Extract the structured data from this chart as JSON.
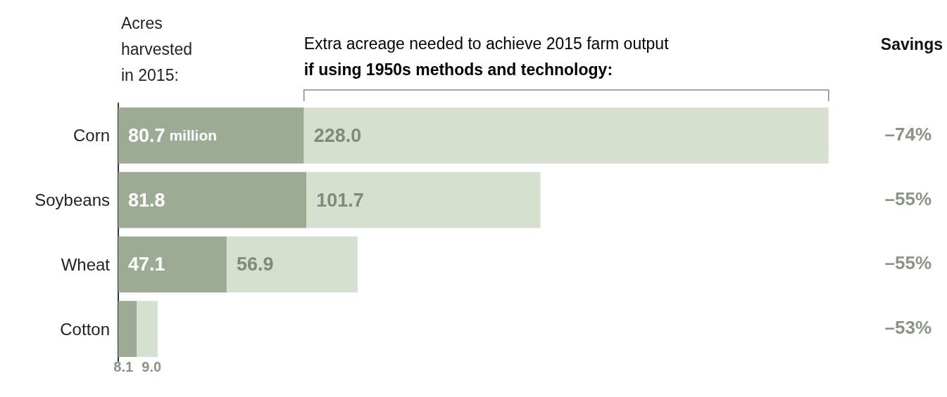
{
  "chart_data": {
    "type": "bar",
    "orientation": "horizontal",
    "stacked": true,
    "categories": [
      "Corn",
      "Soybeans",
      "Wheat",
      "Cotton"
    ],
    "series": [
      {
        "name": "Acres\nharvested\nin 2015:",
        "color": "#9eab94",
        "values": [
          80.7,
          81.8,
          47.1,
          8.1
        ],
        "value_labels": [
          "80.7 million",
          "81.8",
          "47.1",
          "8.1"
        ]
      },
      {
        "name": "Extra acreage needed to achieve 2015 farm output\nif using 1950s methods and technology:",
        "color": "#d5e0cf",
        "values": [
          228.0,
          101.7,
          56.9,
          9.0
        ],
        "value_labels": [
          "228.0",
          "101.7",
          "56.9",
          "9.0"
        ]
      }
    ],
    "xlim": [
      0,
      310
    ],
    "legend": false,
    "grid": false,
    "annotations": [
      "Savings",
      "–74%",
      "–55%",
      "–55%",
      "–53%"
    ]
  }
}
